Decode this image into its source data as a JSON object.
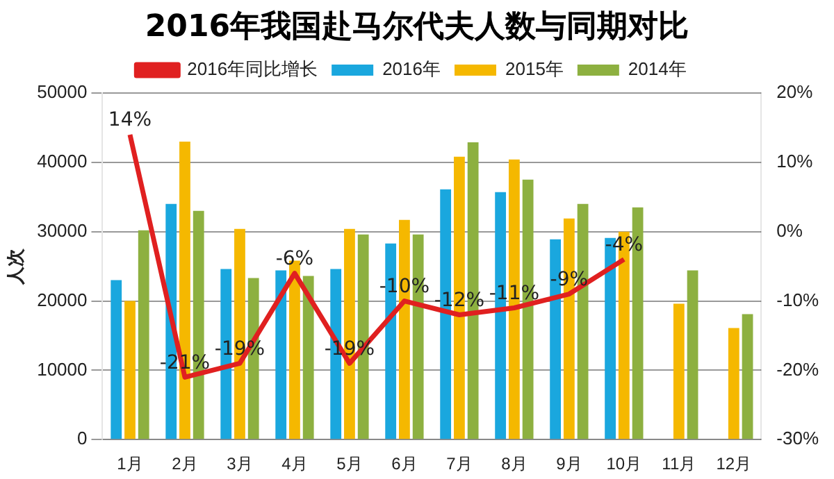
{
  "chart_data": {
    "type": "bar",
    "title": "2016年我国赴马尔代夫人数与同期对比",
    "ylabel": "人次",
    "categories": [
      "1月",
      "2月",
      "3月",
      "4月",
      "5月",
      "6月",
      "7月",
      "8月",
      "9月",
      "10月",
      "11月",
      "12月"
    ],
    "series": [
      {
        "name": "2016年",
        "color": "#1aa7de",
        "values": [
          23000,
          34000,
          24600,
          24400,
          24600,
          28300,
          36100,
          35700,
          28900,
          29100,
          null,
          null
        ]
      },
      {
        "name": "2015年",
        "color": "#f5b800",
        "values": [
          20000,
          43000,
          30400,
          25800,
          30400,
          31700,
          40800,
          40400,
          31900,
          30000,
          19600,
          16100
        ]
      },
      {
        "name": "2014年",
        "color": "#8db040",
        "values": [
          30200,
          33000,
          23300,
          23600,
          29600,
          29600,
          42900,
          37500,
          34000,
          33500,
          24400,
          18100
        ]
      },
      {
        "name": "2016年同比增长",
        "type": "line",
        "axis": "y2",
        "color": "#e02020",
        "values": [
          14,
          -21,
          -19,
          -6,
          -19,
          -10,
          -12,
          -11,
          -9,
          -4,
          null,
          null
        ],
        "value_labels": [
          "14%",
          "-21%",
          "-19%",
          "-6%",
          "-19%",
          "-10%",
          "-12%",
          "-11%",
          "-9%",
          "-4%",
          null,
          null
        ]
      }
    ],
    "ylim": [
      0,
      50000
    ],
    "yticks": [
      0,
      10000,
      20000,
      30000,
      40000,
      50000
    ],
    "y2lim": [
      -30,
      20
    ],
    "y2ticks": [
      {
        "value": -30,
        "label": "-30%"
      },
      {
        "value": -20,
        "label": "-20%"
      },
      {
        "value": -10,
        "label": "-10%"
      },
      {
        "value": 0,
        "label": "0%"
      },
      {
        "value": 10,
        "label": "10%"
      },
      {
        "value": 20,
        "label": "20%"
      }
    ],
    "grid": "y",
    "legend": "top",
    "marker": "none"
  }
}
